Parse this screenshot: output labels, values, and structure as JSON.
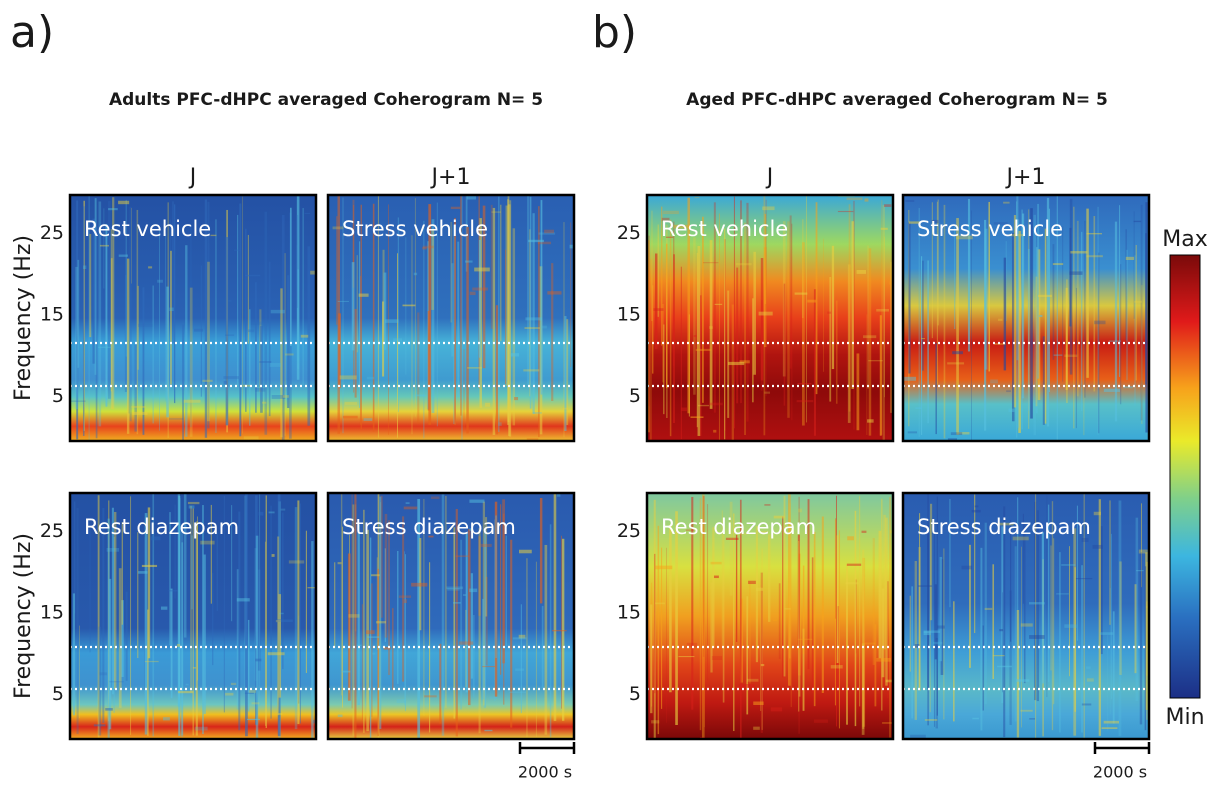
{
  "figure": {
    "panels": [
      {
        "label": "a)",
        "title": "Adults PFC-dHPC averaged Coherogram N= 5",
        "columns": [
          "J",
          "J+1"
        ],
        "y_label": "Frequency (Hz)",
        "yticks": [
          5,
          15,
          25
        ],
        "plots": [
          "Rest vehicle",
          "Stress vehicle",
          "Rest diazepam",
          "Stress diazepam"
        ],
        "scale_bar": "2000 s"
      },
      {
        "label": "b)",
        "title": "Aged PFC-dHPC averaged Coherogram N= 5",
        "columns": [
          "J",
          "J+1"
        ],
        "y_label": "Frequency (Hz)",
        "yticks": [
          5,
          15,
          25
        ],
        "plots": [
          "Rest vehicle",
          "Stress vehicle",
          "Rest diazepam",
          "Stress diazepam"
        ],
        "scale_bar": "2000 s"
      }
    ],
    "colorbar": {
      "max": "Max",
      "min": "Min"
    }
  }
}
